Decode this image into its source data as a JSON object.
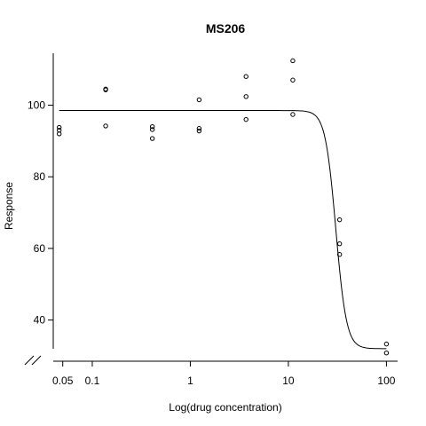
{
  "chart_data": {
    "type": "scatter",
    "title": "MS206",
    "xlabel": "Log(drug concentration)",
    "ylabel": "Response",
    "x_scale": "log",
    "xlim": [
      0.04,
      130
    ],
    "ylim": [
      28.5,
      114.5
    ],
    "x_ticks": [
      {
        "value": 0.05,
        "label": "0.05"
      },
      {
        "value": 0.1,
        "label": "0.1"
      },
      {
        "value": 1,
        "label": "1"
      },
      {
        "value": 10,
        "label": "10"
      },
      {
        "value": 100,
        "label": "100"
      }
    ],
    "y_ticks": [
      {
        "value": 40,
        "label": "40"
      },
      {
        "value": 60,
        "label": "60"
      },
      {
        "value": 80,
        "label": "80"
      },
      {
        "value": 100,
        "label": "100"
      }
    ],
    "axis_break": "x-axis break at origin",
    "grid": false,
    "points": [
      {
        "x": 0.046,
        "y": 93.8
      },
      {
        "x": 0.046,
        "y": 93.0
      },
      {
        "x": 0.046,
        "y": 92.0
      },
      {
        "x": 0.137,
        "y": 104.5
      },
      {
        "x": 0.137,
        "y": 104.3
      },
      {
        "x": 0.137,
        "y": 94.2
      },
      {
        "x": 0.41,
        "y": 94.0
      },
      {
        "x": 0.41,
        "y": 93.2
      },
      {
        "x": 0.41,
        "y": 90.7
      },
      {
        "x": 1.23,
        "y": 101.5
      },
      {
        "x": 1.23,
        "y": 93.5
      },
      {
        "x": 1.23,
        "y": 92.8
      },
      {
        "x": 3.7,
        "y": 108.0
      },
      {
        "x": 3.7,
        "y": 102.4
      },
      {
        "x": 3.7,
        "y": 96.0
      },
      {
        "x": 11.1,
        "y": 112.4
      },
      {
        "x": 11.1,
        "y": 107.0
      },
      {
        "x": 11.1,
        "y": 97.4
      },
      {
        "x": 33.3,
        "y": 68.0
      },
      {
        "x": 33.3,
        "y": 61.3
      },
      {
        "x": 33.3,
        "y": 58.3
      },
      {
        "x": 100,
        "y": 33.3
      },
      {
        "x": 100,
        "y": 30.8
      }
    ],
    "fit_curve": {
      "model": "4-parameter logistic",
      "top": 98.5,
      "bottom": 32.0,
      "ec50": 30.5,
      "hill": 8
    }
  }
}
